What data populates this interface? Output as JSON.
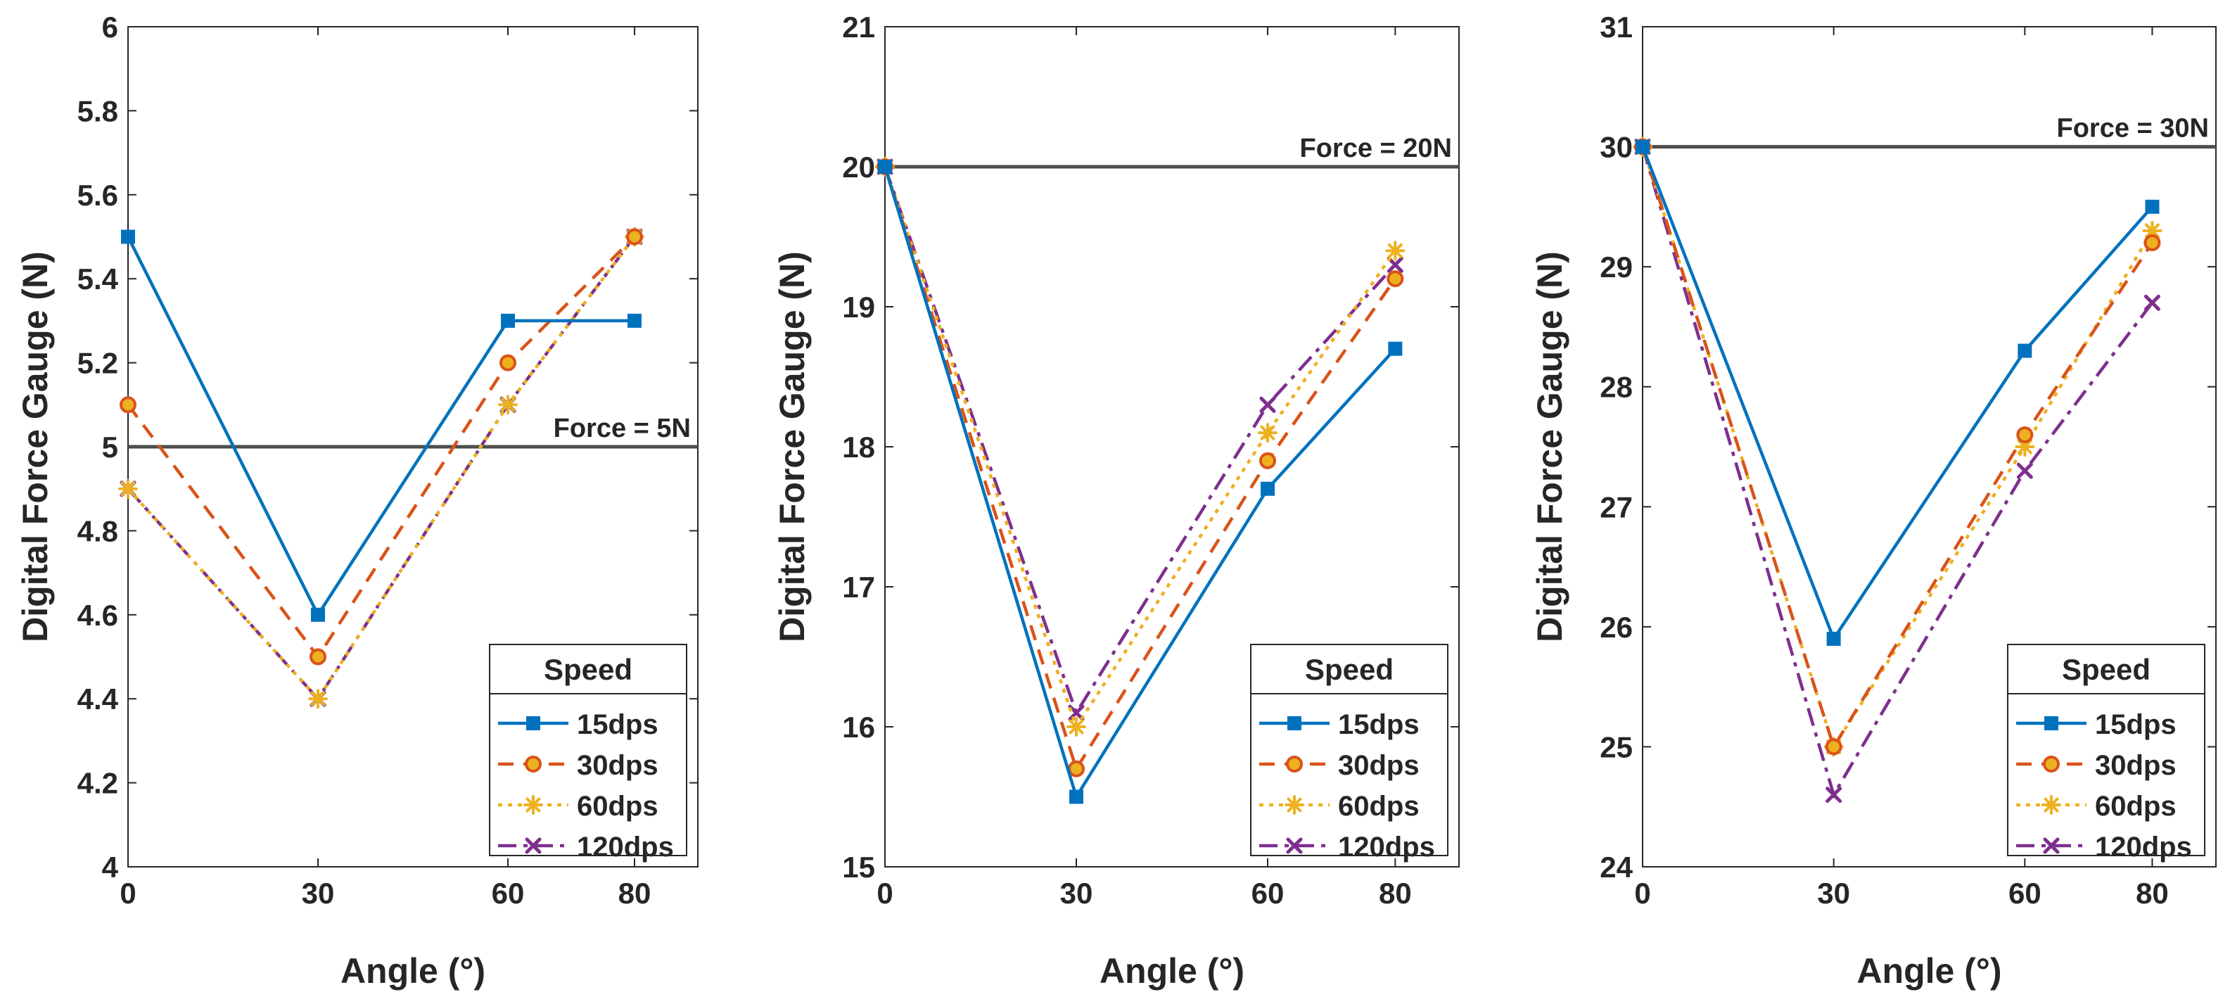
{
  "chart_data": [
    {
      "type": "line",
      "x": [
        0,
        30,
        60,
        80
      ],
      "xticks": [
        "0",
        "30",
        "60",
        "80"
      ],
      "xlabel": "Angle (°)",
      "ylabel": "Digital Force Gauge (N)",
      "xlim": [
        0,
        90
      ],
      "ylim": [
        4,
        6
      ],
      "yticks": [
        "4",
        "4.2",
        "4.4",
        "4.6",
        "4.8",
        "5",
        "5.2",
        "5.4",
        "5.6",
        "5.8",
        "6"
      ],
      "reference": {
        "value": 5,
        "label": "Force = 5N"
      },
      "legend": {
        "title": "Speed",
        "position": "bottom-right"
      },
      "series": [
        {
          "name": "15dps",
          "values": [
            5.5,
            4.6,
            5.3,
            5.3
          ],
          "color": "#0072BD"
        },
        {
          "name": "30dps",
          "values": [
            5.1,
            4.5,
            5.2,
            5.5
          ],
          "color": "#D95319"
        },
        {
          "name": "60dps",
          "values": [
            4.9,
            4.4,
            5.1,
            5.5
          ],
          "color": "#EDB120"
        },
        {
          "name": "120dps",
          "values": [
            4.9,
            4.4,
            5.1,
            5.5
          ],
          "color": "#7E2F8E"
        }
      ]
    },
    {
      "type": "line",
      "x": [
        0,
        30,
        60,
        80
      ],
      "xticks": [
        "0",
        "30",
        "60",
        "80"
      ],
      "xlabel": "Angle (°)",
      "ylabel": "Digital Force Gauge (N)",
      "xlim": [
        0,
        90
      ],
      "ylim": [
        15,
        21
      ],
      "yticks": [
        "15",
        "16",
        "17",
        "18",
        "19",
        "20",
        "21"
      ],
      "reference": {
        "value": 20,
        "label": "Force = 20N"
      },
      "legend": {
        "title": "Speed",
        "position": "bottom-right"
      },
      "series": [
        {
          "name": "15dps",
          "values": [
            20,
            15.5,
            17.7,
            18.7
          ],
          "color": "#0072BD"
        },
        {
          "name": "30dps",
          "values": [
            20,
            15.7,
            17.9,
            19.2
          ],
          "color": "#D95319"
        },
        {
          "name": "60dps",
          "values": [
            20,
            16.0,
            18.1,
            19.4
          ],
          "color": "#EDB120"
        },
        {
          "name": "120dps",
          "values": [
            20,
            16.1,
            18.3,
            19.3
          ],
          "color": "#7E2F8E"
        }
      ]
    },
    {
      "type": "line",
      "x": [
        0,
        30,
        60,
        80
      ],
      "xticks": [
        "0",
        "30",
        "60",
        "80"
      ],
      "xlabel": "Angle (°)",
      "ylabel": "Digital Force Gauge (N)",
      "xlim": [
        0,
        90
      ],
      "ylim": [
        24,
        31
      ],
      "yticks": [
        "24",
        "25",
        "26",
        "27",
        "28",
        "29",
        "30",
        "31"
      ],
      "reference": {
        "value": 30,
        "label": "Force = 30N"
      },
      "legend": {
        "title": "Speed",
        "position": "bottom-right"
      },
      "series": [
        {
          "name": "15dps",
          "values": [
            30,
            25.9,
            28.3,
            29.5
          ],
          "color": "#0072BD"
        },
        {
          "name": "30dps",
          "values": [
            30,
            25.0,
            27.6,
            29.2
          ],
          "color": "#D95319"
        },
        {
          "name": "60dps",
          "values": [
            30,
            25.0,
            27.5,
            29.3
          ],
          "color": "#EDB120"
        },
        {
          "name": "120dps",
          "values": [
            30,
            24.6,
            27.3,
            28.7
          ],
          "color": "#7E2F8E"
        }
      ]
    }
  ]
}
